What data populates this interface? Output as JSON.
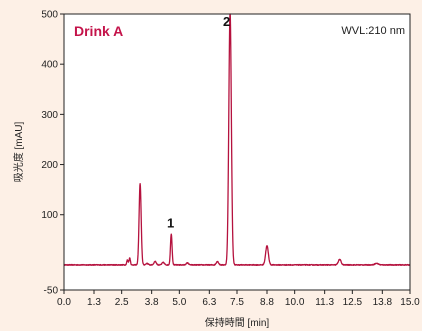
{
  "chart_data": {
    "type": "line",
    "title": "Drink A",
    "annotation": "WVL:210 nm",
    "xlabel": "保持時間 [min]",
    "ylabel": "吸光度 [mAU]",
    "xlim": [
      0.0,
      15.0
    ],
    "ylim": [
      -50,
      500
    ],
    "xticks": [
      0.0,
      1.3,
      2.5,
      3.8,
      5.0,
      6.3,
      7.5,
      8.8,
      10.0,
      11.3,
      12.5,
      13.8,
      15.0
    ],
    "xtick_labels": [
      "0.0",
      "1.3",
      "2.5",
      "3.8",
      "5.0",
      "6.3",
      "7.5",
      "8.8",
      "10.0",
      "11.3",
      "12.5",
      "13.8",
      "15.0"
    ],
    "yticks": [
      -50,
      100,
      200,
      300,
      400,
      500
    ],
    "ytick_labels": [
      "-50",
      "100",
      "200",
      "300",
      "400",
      "500"
    ],
    "grid": false,
    "colors": {
      "line": "#b5123e",
      "title": "#c4134a",
      "background": "#fdf0e6",
      "plot": "#ffffff"
    },
    "baseline": 0,
    "peaks": [
      {
        "t": 2.75,
        "h": 10,
        "w": 0.03
      },
      {
        "t": 2.85,
        "h": 14,
        "w": 0.03
      },
      {
        "t": 3.3,
        "h": 162,
        "w": 0.045
      },
      {
        "t": 3.6,
        "h": 3,
        "w": 0.05
      },
      {
        "t": 3.95,
        "h": 7,
        "w": 0.05
      },
      {
        "t": 4.3,
        "h": 5,
        "w": 0.05
      },
      {
        "t": 4.65,
        "h": 62,
        "w": 0.035
      },
      {
        "t": 5.35,
        "h": 4,
        "w": 0.05
      },
      {
        "t": 6.65,
        "h": 7,
        "w": 0.05
      },
      {
        "t": 7.2,
        "h": 505,
        "w": 0.055
      },
      {
        "t": 8.8,
        "h": 38,
        "w": 0.06
      },
      {
        "t": 11.95,
        "h": 11,
        "w": 0.06
      },
      {
        "t": 13.55,
        "h": 3,
        "w": 0.08
      }
    ],
    "peak_labels": [
      {
        "label": "1",
        "t": 4.62,
        "value": 75
      },
      {
        "label": "2",
        "t": 7.05,
        "value": 482
      }
    ]
  }
}
